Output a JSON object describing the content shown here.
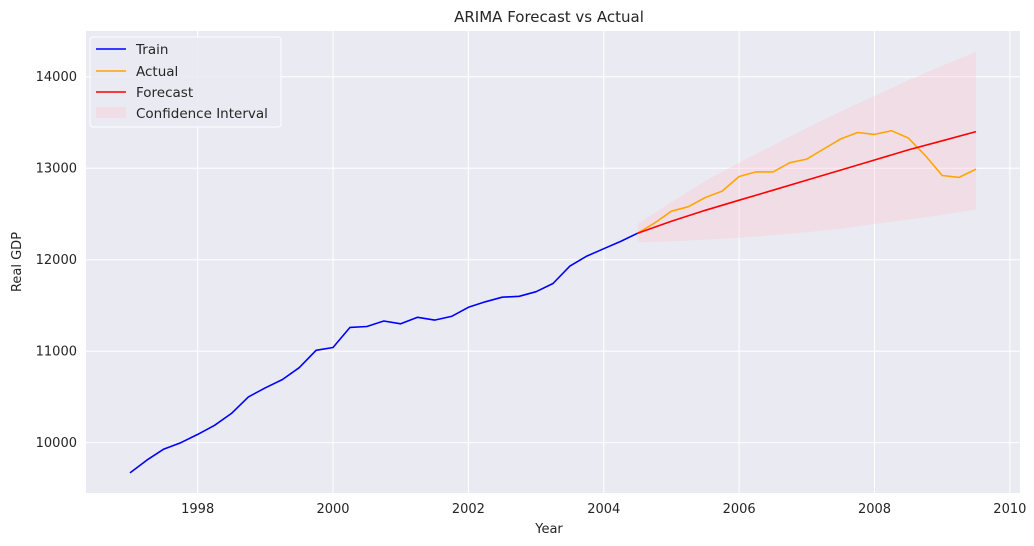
{
  "chart_data": {
    "type": "line",
    "title": "ARIMA Forecast vs Actual",
    "xlabel": "Year",
    "ylabel": "Real GDP",
    "xlim": [
      1996.35,
      2010.15
    ],
    "ylim": [
      9450,
      14500
    ],
    "xticks": [
      1998,
      2000,
      2002,
      2004,
      2006,
      2008,
      2010
    ],
    "yticks": [
      10000,
      11000,
      12000,
      13000,
      14000
    ],
    "grid": true,
    "legend_position": "top-left",
    "series": [
      {
        "name": "Train",
        "color": "#0000ff",
        "x": [
          1997.0,
          1997.25,
          1997.5,
          1997.75,
          1998.0,
          1998.25,
          1998.5,
          1998.75,
          1999.0,
          1999.25,
          1999.5,
          1999.75,
          2000.0,
          2000.25,
          2000.5,
          2000.75,
          2001.0,
          2001.25,
          2001.5,
          2001.75,
          2002.0,
          2002.25,
          2002.5,
          2002.75,
          2003.0,
          2003.25,
          2003.5,
          2003.75,
          2004.0,
          2004.25,
          2004.5
        ],
        "y": [
          9670,
          9810,
          9930,
          10000,
          10090,
          10190,
          10320,
          10500,
          10600,
          10690,
          10820,
          11010,
          11040,
          11260,
          11270,
          11330,
          11300,
          11370,
          11340,
          11380,
          11480,
          11540,
          11590,
          11600,
          11650,
          11740,
          11930,
          12040,
          12120,
          12200,
          12290
        ]
      },
      {
        "name": "Actual",
        "color": "#ffa500",
        "x": [
          2004.5,
          2004.75,
          2005.0,
          2005.25,
          2005.5,
          2005.75,
          2006.0,
          2006.25,
          2006.5,
          2006.75,
          2007.0,
          2007.25,
          2007.5,
          2007.75,
          2008.0,
          2008.25,
          2008.5,
          2008.75,
          2009.0,
          2009.25,
          2009.5
        ],
        "y": [
          12290,
          12400,
          12530,
          12580,
          12680,
          12750,
          12910,
          12960,
          12960,
          13060,
          13100,
          13210,
          13320,
          13390,
          13370,
          13410,
          13330,
          13140,
          12920,
          12900,
          12990
        ]
      },
      {
        "name": "Forecast",
        "color": "#ff0000",
        "x": [
          2004.5,
          2005.0,
          2005.5,
          2006.0,
          2006.5,
          2007.0,
          2007.5,
          2008.0,
          2008.5,
          2009.0,
          2009.5
        ],
        "y": [
          12290,
          12420,
          12540,
          12650,
          12760,
          12870,
          12980,
          13090,
          13200,
          13300,
          13400
        ]
      }
    ],
    "confidence_interval": {
      "name": "Confidence Interval",
      "color": "#ffc0cb",
      "x": [
        2004.5,
        2005.0,
        2005.5,
        2006.0,
        2006.5,
        2007.0,
        2007.5,
        2008.0,
        2008.5,
        2009.0,
        2009.5
      ],
      "lower": [
        12190,
        12200,
        12220,
        12240,
        12270,
        12300,
        12340,
        12390,
        12440,
        12490,
        12550
      ],
      "upper": [
        12390,
        12630,
        12860,
        13060,
        13250,
        13440,
        13620,
        13790,
        13960,
        14120,
        14270
      ]
    }
  }
}
